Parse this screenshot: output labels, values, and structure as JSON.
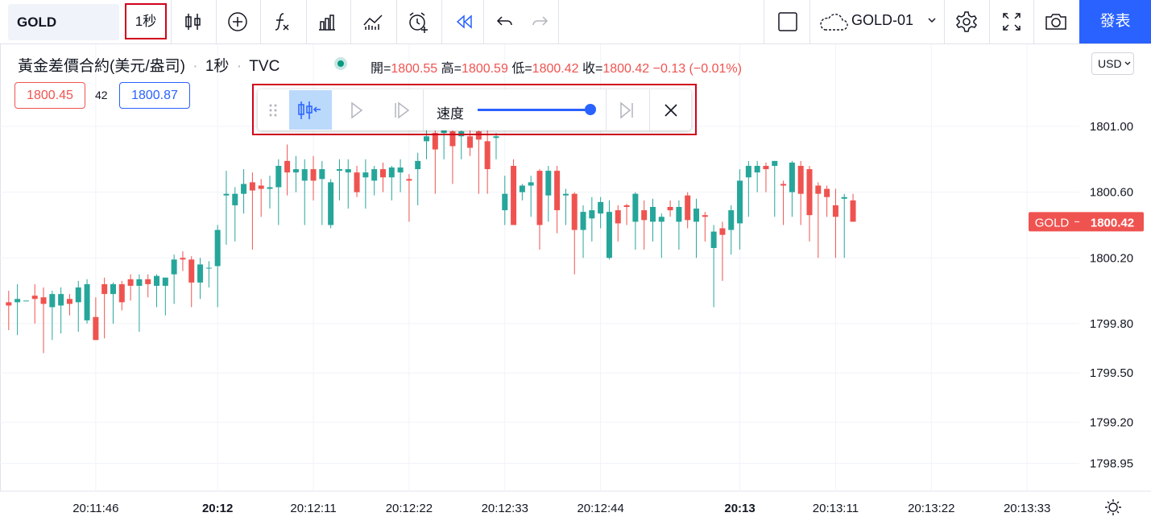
{
  "toolbar": {
    "symbol": "GOLD",
    "interval": "1秒",
    "layout": "GOLD-01",
    "publish": "發表"
  },
  "legend": {
    "title": "黃金差價合約(美元/盎司)",
    "interval": "1秒",
    "exchange": "TVC",
    "ohlc": [
      {
        "label": "開=",
        "value": 1800.55
      },
      {
        "label": "高=",
        "value": 1800.59
      },
      {
        "label": "低=",
        "value": 1800.42
      },
      {
        "label": "收=",
        "value": 1800.42
      }
    ],
    "change": "−0.13 (−0.01%)",
    "bid": 1800.45,
    "spread": "42",
    "ask": 1800.87
  },
  "replay": {
    "speed": "速度"
  },
  "currency": "USD",
  "chart_data": {
    "type": "candlestick",
    "up_color": "#26a69a",
    "down_color": "#ef5350",
    "grid": true,
    "x": [
      "20:11:36",
      "20:11:37",
      "20:11:38",
      "20:11:39",
      "20:11:40",
      "20:11:41",
      "20:11:42",
      "20:11:43",
      "20:11:44",
      "20:11:45",
      "20:11:46",
      "20:11:47",
      "20:11:48",
      "20:11:49",
      "20:11:50",
      "20:11:51",
      "20:11:52",
      "20:11:53",
      "20:11:54",
      "20:11:55",
      "20:11:56",
      "20:11:57",
      "20:11:58",
      "20:11:59",
      "20:12:00",
      "20:12:01",
      "20:12:02",
      "20:12:03",
      "20:12:04",
      "20:12:05",
      "20:12:06",
      "20:12:07",
      "20:12:08",
      "20:12:09",
      "20:12:10",
      "20:12:11",
      "20:12:12",
      "20:12:13",
      "20:12:14",
      "20:12:15",
      "20:12:16",
      "20:12:17",
      "20:12:18",
      "20:12:19",
      "20:12:20",
      "20:12:21",
      "20:12:22",
      "20:12:23",
      "20:12:24",
      "20:12:25",
      "20:12:26",
      "20:12:27",
      "20:12:28",
      "20:12:29",
      "20:12:30",
      "20:12:31",
      "20:12:32",
      "20:12:33",
      "20:12:34",
      "20:12:35",
      "20:12:36",
      "20:12:37",
      "20:12:38",
      "20:12:39",
      "20:12:40",
      "20:12:41",
      "20:12:42",
      "20:12:43",
      "20:12:44",
      "20:12:45",
      "20:12:46",
      "20:12:47",
      "20:12:48",
      "20:12:49",
      "20:12:50",
      "20:12:51",
      "20:12:52",
      "20:12:53",
      "20:12:54",
      "20:12:55",
      "20:12:56",
      "20:12:57",
      "20:12:58",
      "20:12:59",
      "20:13:00",
      "20:13:01",
      "20:13:02",
      "20:13:03",
      "20:13:04",
      "20:13:05",
      "20:13:06",
      "20:13:07",
      "20:13:08",
      "20:13:09",
      "20:13:10",
      "20:13:11",
      "20:13:12",
      "20:13:13"
    ],
    "open": [
      1799.93,
      1799.93,
      1799.94,
      1799.97,
      1799.96,
      1799.9,
      1799.91,
      1799.95,
      1799.93,
      1799.82,
      1799.84,
      1800.04,
      1799.98,
      1800.04,
      1800.07,
      1800.03,
      1800.07,
      1800.03,
      1800.03,
      1800.1,
      1800.2,
      1800.19,
      1800.05,
      1800.14,
      1800.15,
      1800.58,
      1800.52,
      1800.59,
      1800.66,
      1800.64,
      1800.62,
      1800.63,
      1800.79,
      1800.72,
      1800.67,
      1800.74,
      1800.68,
      1800.4,
      1800.73,
      1800.72,
      1800.72,
      1800.69,
      1800.67,
      1800.74,
      1800.69,
      1800.72,
      1800.68,
      1800.74,
      1800.91,
      1800.96,
      1800.96,
      1800.97,
      1800.94,
      1800.94,
      1800.97,
      1800.91,
      1800.93,
      1800.49,
      1800.76,
      1800.6,
      1800.64,
      1800.73,
      1800.58,
      1800.73,
      1800.58,
      1800.59,
      1800.37,
      1800.44,
      1800.47,
      1800.2,
      1800.49,
      1800.52,
      1800.42,
      1800.49,
      1800.42,
      1800.42,
      1800.51,
      1800.42,
      1800.58,
      1800.42,
      1800.46,
      1800.26,
      1800.38,
      1800.37,
      1800.41,
      1800.69,
      1800.72,
      1800.76,
      1800.76,
      1800.65,
      1800.6,
      1800.76,
      1800.74,
      1800.64,
      1800.62,
      1800.52,
      1800.56,
      1800.55
    ],
    "high": [
      1800.0,
      1800.04,
      1799.94,
      1800.04,
      1800.02,
      1800.0,
      1800.02,
      1799.98,
      1800.06,
      1800.07,
      1799.96,
      1800.08,
      1800.05,
      1800.06,
      1800.1,
      1800.1,
      1800.1,
      1800.1,
      1800.08,
      1800.22,
      1800.24,
      1800.21,
      1800.2,
      1800.18,
      1800.4,
      1800.73,
      1800.63,
      1800.74,
      1800.72,
      1800.68,
      1800.7,
      1800.8,
      1800.89,
      1800.82,
      1800.8,
      1800.82,
      1800.79,
      1800.68,
      1800.8,
      1800.8,
      1800.76,
      1800.8,
      1800.76,
      1800.78,
      1800.76,
      1800.8,
      1800.71,
      1800.84,
      1801.0,
      1801.0,
      1801.02,
      1801.0,
      1801.0,
      1801.0,
      1801.0,
      1800.98,
      1800.96,
      1800.7,
      1800.8,
      1800.65,
      1800.7,
      1800.74,
      1800.76,
      1800.76,
      1800.62,
      1800.6,
      1800.52,
      1800.57,
      1800.57,
      1800.55,
      1800.52,
      1800.53,
      1800.6,
      1800.55,
      1800.56,
      1800.47,
      1800.55,
      1800.55,
      1800.6,
      1800.56,
      1800.48,
      1800.4,
      1800.42,
      1800.52,
      1800.74,
      1800.79,
      1800.79,
      1800.78,
      1800.79,
      1800.67,
      1800.79,
      1800.79,
      1800.76,
      1800.66,
      1800.64,
      1800.62,
      1800.59,
      1800.59
    ],
    "low": [
      1799.76,
      1799.73,
      1799.94,
      1799.8,
      1799.62,
      1799.7,
      1799.74,
      1799.85,
      1799.75,
      1799.8,
      1799.7,
      1799.71,
      1799.8,
      1799.88,
      1799.94,
      1799.75,
      1799.96,
      1799.9,
      1799.85,
      1799.92,
      1800.12,
      1799.9,
      1799.95,
      1800.02,
      1799.9,
      1800.28,
      1800.3,
      1800.47,
      1800.25,
      1800.45,
      1800.5,
      1800.4,
      1800.58,
      1800.6,
      1800.4,
      1800.55,
      1800.4,
      1800.38,
      1800.55,
      1800.5,
      1800.57,
      1800.5,
      1800.58,
      1800.6,
      1800.55,
      1800.6,
      1800.42,
      1800.52,
      1800.8,
      1800.59,
      1800.8,
      1800.65,
      1800.8,
      1800.82,
      1800.59,
      1800.59,
      1800.8,
      1800.4,
      1800.4,
      1800.55,
      1800.45,
      1800.25,
      1800.42,
      1800.35,
      1800.4,
      1800.1,
      1800.2,
      1800.3,
      1800.38,
      1800.19,
      1800.3,
      1800.4,
      1800.25,
      1800.25,
      1800.3,
      1800.2,
      1800.45,
      1800.25,
      1800.38,
      1800.2,
      1800.3,
      1799.9,
      1800.06,
      1800.22,
      1800.25,
      1800.45,
      1800.6,
      1800.6,
      1800.45,
      1800.4,
      1800.45,
      1800.4,
      1800.3,
      1800.2,
      1800.45,
      1800.2,
      1800.2,
      1800.42
    ],
    "close": [
      1799.91,
      1799.95,
      1799.94,
      1799.95,
      1799.92,
      1799.98,
      1799.98,
      1799.92,
      1800.02,
      1800.04,
      1799.7,
      1799.98,
      1800.04,
      1799.93,
      1800.03,
      1800.07,
      1800.04,
      1800.09,
      1800.08,
      1800.19,
      1800.19,
      1800.05,
      1800.16,
      1800.14,
      1800.37,
      1800.59,
      1800.59,
      1800.65,
      1800.61,
      1800.62,
      1800.63,
      1800.76,
      1800.72,
      1800.74,
      1800.74,
      1800.67,
      1800.74,
      1800.66,
      1800.74,
      1800.74,
      1800.6,
      1800.72,
      1800.74,
      1800.69,
      1800.75,
      1800.75,
      1800.67,
      1800.79,
      1800.94,
      1800.86,
      1800.99,
      1800.88,
      1800.97,
      1800.87,
      1800.92,
      1800.74,
      1800.94,
      1800.59,
      1800.4,
      1800.64,
      1800.66,
      1800.4,
      1800.73,
      1800.49,
      1800.59,
      1800.37,
      1800.48,
      1800.49,
      1800.54,
      1800.48,
      1800.41,
      1800.51,
      1800.59,
      1800.43,
      1800.51,
      1800.45,
      1800.49,
      1800.51,
      1800.43,
      1800.5,
      1800.45,
      1800.36,
      1800.34,
      1800.49,
      1800.67,
      1800.76,
      1800.76,
      1800.74,
      1800.79,
      1800.64,
      1800.78,
      1800.59,
      1800.46,
      1800.59,
      1800.57,
      1800.45,
      1800.57,
      1800.42
    ],
    "xlim": [
      "20:11:35",
      "20:13:39"
    ],
    "xticks": [
      "20:11:46",
      "20:12",
      "20:12:11",
      "20:12:22",
      "20:12:33",
      "20:12:44",
      "20:13",
      "20:13:11",
      "20:13:22",
      "20:13:33"
    ],
    "ylim": [
      1798.78,
      1801.5
    ],
    "yticks": [
      {
        "value": 1801,
        "label": "1801.00"
      },
      {
        "value": 1800.6,
        "label": "1800.60"
      },
      {
        "value": 1800.2,
        "label": "1800.20"
      },
      {
        "value": 1799.8,
        "label": "1799.80"
      },
      {
        "value": 1799.5,
        "label": "1799.50"
      },
      {
        "value": 1799.2,
        "label": "1799.20"
      },
      1798.95
    ],
    "last_price": {
      "name": "GOLD",
      "value": 1800.42
    }
  }
}
